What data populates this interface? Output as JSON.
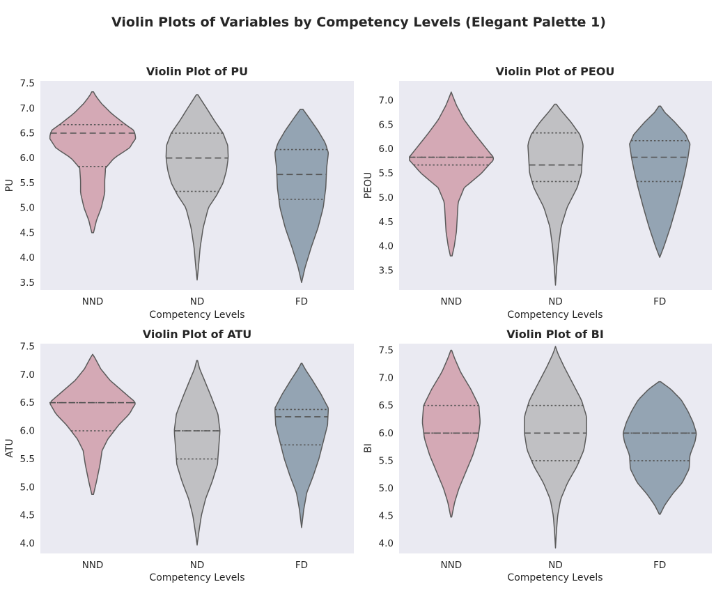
{
  "figure": {
    "title": "Violin Plots of Variables by Competency Levels (Elegant Palette 1)"
  },
  "chart_data": [
    {
      "type": "violin",
      "title": "Violin Plot of PU",
      "xlabel": "Competency Levels",
      "ylabel": "PU",
      "ylim": [
        3.35,
        7.55
      ],
      "yticks": [
        "3.5",
        "4.0",
        "4.5",
        "5.0",
        "5.5",
        "6.0",
        "6.5",
        "7.0",
        "7.5"
      ],
      "categories": [
        "NND",
        "ND",
        "FD"
      ],
      "colors": [
        "#d4a9b5",
        "#c0c0c3",
        "#94a4b3"
      ],
      "grid": false,
      "inner": "quartile",
      "violins": [
        {
          "category": "NND",
          "min": 4.5,
          "max": 7.33,
          "q1": 5.83,
          "median": 6.5,
          "q3": 6.67,
          "profile": [
            [
              4.5,
              0.02
            ],
            [
              4.75,
              0.09
            ],
            [
              5.0,
              0.2
            ],
            [
              5.3,
              0.28
            ],
            [
              5.55,
              0.28
            ],
            [
              5.8,
              0.3
            ],
            [
              6.0,
              0.5
            ],
            [
              6.2,
              0.85
            ],
            [
              6.4,
              1.0
            ],
            [
              6.55,
              0.96
            ],
            [
              6.7,
              0.72
            ],
            [
              6.9,
              0.43
            ],
            [
              7.1,
              0.2
            ],
            [
              7.25,
              0.07
            ],
            [
              7.33,
              0.02
            ]
          ]
        },
        {
          "category": "ND",
          "min": 3.55,
          "max": 7.27,
          "q1": 5.33,
          "median": 6.0,
          "q3": 6.5,
          "profile": [
            [
              3.55,
              0.0
            ],
            [
              3.8,
              0.03
            ],
            [
              4.2,
              0.07
            ],
            [
              4.6,
              0.14
            ],
            [
              5.0,
              0.26
            ],
            [
              5.25,
              0.45
            ],
            [
              5.5,
              0.6
            ],
            [
              5.75,
              0.68
            ],
            [
              6.0,
              0.72
            ],
            [
              6.25,
              0.71
            ],
            [
              6.5,
              0.6
            ],
            [
              6.75,
              0.4
            ],
            [
              7.0,
              0.22
            ],
            [
              7.2,
              0.07
            ],
            [
              7.27,
              0.02
            ]
          ]
        },
        {
          "category": "FD",
          "min": 3.5,
          "max": 6.98,
          "q1": 5.17,
          "median": 5.67,
          "q3": 6.17,
          "profile": [
            [
              3.5,
              0.0
            ],
            [
              3.8,
              0.08
            ],
            [
              4.2,
              0.22
            ],
            [
              4.6,
              0.38
            ],
            [
              5.0,
              0.5
            ],
            [
              5.4,
              0.56
            ],
            [
              5.8,
              0.58
            ],
            [
              6.1,
              0.62
            ],
            [
              6.3,
              0.55
            ],
            [
              6.55,
              0.38
            ],
            [
              6.8,
              0.18
            ],
            [
              6.98,
              0.03
            ]
          ]
        }
      ]
    },
    {
      "type": "violin",
      "title": "Violin Plot of PEOU",
      "xlabel": "Competency Levels",
      "ylabel": "PEOU",
      "ylim": [
        3.1,
        7.4
      ],
      "yticks": [
        "3.5",
        "4.0",
        "4.5",
        "5.0",
        "5.5",
        "6.0",
        "6.5",
        "7.0"
      ],
      "categories": [
        "NND",
        "ND",
        "FD"
      ],
      "colors": [
        "#d4a9b5",
        "#c0c0c3",
        "#94a4b3"
      ],
      "grid": false,
      "inner": "quartile",
      "violins": [
        {
          "category": "NND",
          "min": 3.8,
          "max": 7.17,
          "q1": 5.67,
          "median": 5.83,
          "q3": 5.83,
          "profile": [
            [
              3.8,
              0.02
            ],
            [
              4.0,
              0.07
            ],
            [
              4.3,
              0.12
            ],
            [
              4.6,
              0.14
            ],
            [
              4.9,
              0.16
            ],
            [
              5.2,
              0.3
            ],
            [
              5.5,
              0.7
            ],
            [
              5.8,
              1.0
            ],
            [
              6.0,
              0.82
            ],
            [
              6.3,
              0.55
            ],
            [
              6.6,
              0.3
            ],
            [
              6.9,
              0.12
            ],
            [
              7.1,
              0.03
            ],
            [
              7.17,
              0.0
            ]
          ]
        },
        {
          "category": "ND",
          "min": 3.2,
          "max": 6.92,
          "q1": 5.33,
          "median": 5.67,
          "q3": 6.33,
          "profile": [
            [
              3.2,
              0.0
            ],
            [
              3.6,
              0.03
            ],
            [
              4.0,
              0.07
            ],
            [
              4.4,
              0.13
            ],
            [
              4.8,
              0.27
            ],
            [
              5.2,
              0.5
            ],
            [
              5.5,
              0.6
            ],
            [
              5.8,
              0.62
            ],
            [
              6.1,
              0.64
            ],
            [
              6.3,
              0.56
            ],
            [
              6.55,
              0.36
            ],
            [
              6.8,
              0.12
            ],
            [
              6.92,
              0.02
            ]
          ]
        },
        {
          "category": "FD",
          "min": 3.77,
          "max": 6.88,
          "q1": 5.33,
          "median": 5.83,
          "q3": 6.17,
          "profile": [
            [
              3.77,
              0.0
            ],
            [
              4.0,
              0.1
            ],
            [
              4.4,
              0.25
            ],
            [
              4.8,
              0.38
            ],
            [
              5.2,
              0.5
            ],
            [
              5.5,
              0.58
            ],
            [
              5.8,
              0.65
            ],
            [
              6.1,
              0.7
            ],
            [
              6.3,
              0.6
            ],
            [
              6.55,
              0.35
            ],
            [
              6.75,
              0.12
            ],
            [
              6.88,
              0.02
            ]
          ]
        }
      ]
    },
    {
      "type": "violin",
      "title": "Violin Plot of ATU",
      "xlabel": "Competency Levels",
      "ylabel": "ATU",
      "ylim": [
        3.82,
        7.55
      ],
      "yticks": [
        "4.0",
        "4.5",
        "5.0",
        "5.5",
        "6.0",
        "6.5",
        "7.0",
        "7.5"
      ],
      "categories": [
        "NND",
        "ND",
        "FD"
      ],
      "colors": [
        "#d4a9b5",
        "#c0c0c3",
        "#94a4b3"
      ],
      "grid": false,
      "inner": "quartile",
      "violins": [
        {
          "category": "NND",
          "min": 4.87,
          "max": 7.36,
          "q1": 6.0,
          "median": 6.5,
          "q3": 6.5,
          "profile": [
            [
              4.87,
              0.02
            ],
            [
              5.1,
              0.09
            ],
            [
              5.4,
              0.17
            ],
            [
              5.65,
              0.22
            ],
            [
              5.85,
              0.35
            ],
            [
              6.1,
              0.6
            ],
            [
              6.3,
              0.85
            ],
            [
              6.5,
              1.0
            ],
            [
              6.7,
              0.7
            ],
            [
              6.9,
              0.4
            ],
            [
              7.1,
              0.19
            ],
            [
              7.3,
              0.05
            ],
            [
              7.36,
              0.0
            ]
          ]
        },
        {
          "category": "ND",
          "min": 3.97,
          "max": 7.25,
          "q1": 5.5,
          "median": 6.0,
          "q3": 6.0,
          "profile": [
            [
              3.97,
              0.0
            ],
            [
              4.2,
              0.04
            ],
            [
              4.5,
              0.1
            ],
            [
              4.8,
              0.2
            ],
            [
              5.1,
              0.35
            ],
            [
              5.4,
              0.47
            ],
            [
              5.7,
              0.5
            ],
            [
              6.0,
              0.53
            ],
            [
              6.3,
              0.48
            ],
            [
              6.6,
              0.33
            ],
            [
              6.9,
              0.17
            ],
            [
              7.1,
              0.06
            ],
            [
              7.25,
              0.01
            ]
          ]
        },
        {
          "category": "FD",
          "min": 4.28,
          "max": 7.2,
          "q1": 5.75,
          "median": 6.25,
          "q3": 6.38,
          "profile": [
            [
              4.28,
              0.0
            ],
            [
              4.6,
              0.05
            ],
            [
              4.9,
              0.12
            ],
            [
              5.2,
              0.27
            ],
            [
              5.5,
              0.4
            ],
            [
              5.8,
              0.5
            ],
            [
              6.1,
              0.6
            ],
            [
              6.4,
              0.62
            ],
            [
              6.65,
              0.45
            ],
            [
              6.9,
              0.25
            ],
            [
              7.1,
              0.08
            ],
            [
              7.2,
              0.01
            ]
          ]
        }
      ]
    },
    {
      "type": "violin",
      "title": "Violin Plot of BI",
      "xlabel": "Competency Levels",
      "ylabel": "BI",
      "ylim": [
        3.82,
        7.62
      ],
      "yticks": [
        "4.0",
        "4.5",
        "5.0",
        "5.5",
        "6.0",
        "6.5",
        "7.0",
        "7.5"
      ],
      "categories": [
        "NND",
        "ND",
        "FD"
      ],
      "colors": [
        "#d4a9b5",
        "#c0c0c3",
        "#94a4b3"
      ],
      "grid": false,
      "inner": "quartile",
      "violins": [
        {
          "category": "NND",
          "min": 4.48,
          "max": 7.5,
          "q1": 6.0,
          "median": 6.0,
          "q3": 6.5,
          "profile": [
            [
              4.48,
              0.01
            ],
            [
              4.75,
              0.08
            ],
            [
              5.0,
              0.18
            ],
            [
              5.3,
              0.34
            ],
            [
              5.6,
              0.5
            ],
            [
              5.9,
              0.62
            ],
            [
              6.2,
              0.67
            ],
            [
              6.5,
              0.64
            ],
            [
              6.8,
              0.45
            ],
            [
              7.1,
              0.22
            ],
            [
              7.35,
              0.08
            ],
            [
              7.5,
              0.01
            ]
          ]
        },
        {
          "category": "ND",
          "min": 3.92,
          "max": 7.57,
          "q1": 5.5,
          "median": 6.0,
          "q3": 6.5,
          "profile": [
            [
              3.92,
              0.0
            ],
            [
              4.2,
              0.02
            ],
            [
              4.5,
              0.05
            ],
            [
              4.8,
              0.12
            ],
            [
              5.1,
              0.28
            ],
            [
              5.4,
              0.5
            ],
            [
              5.7,
              0.66
            ],
            [
              6.0,
              0.72
            ],
            [
              6.3,
              0.72
            ],
            [
              6.6,
              0.6
            ],
            [
              6.9,
              0.4
            ],
            [
              7.2,
              0.2
            ],
            [
              7.45,
              0.05
            ],
            [
              7.57,
              0.0
            ]
          ]
        },
        {
          "category": "FD",
          "min": 4.53,
          "max": 6.93,
          "q1": 5.5,
          "median": 6.0,
          "q3": 6.0,
          "profile": [
            [
              4.53,
              0.01
            ],
            [
              4.7,
              0.12
            ],
            [
              4.9,
              0.3
            ],
            [
              5.1,
              0.52
            ],
            [
              5.35,
              0.68
            ],
            [
              5.6,
              0.7
            ],
            [
              5.85,
              0.82
            ],
            [
              6.0,
              0.85
            ],
            [
              6.2,
              0.77
            ],
            [
              6.4,
              0.65
            ],
            [
              6.6,
              0.5
            ],
            [
              6.8,
              0.25
            ],
            [
              6.93,
              0.02
            ]
          ]
        }
      ]
    }
  ]
}
